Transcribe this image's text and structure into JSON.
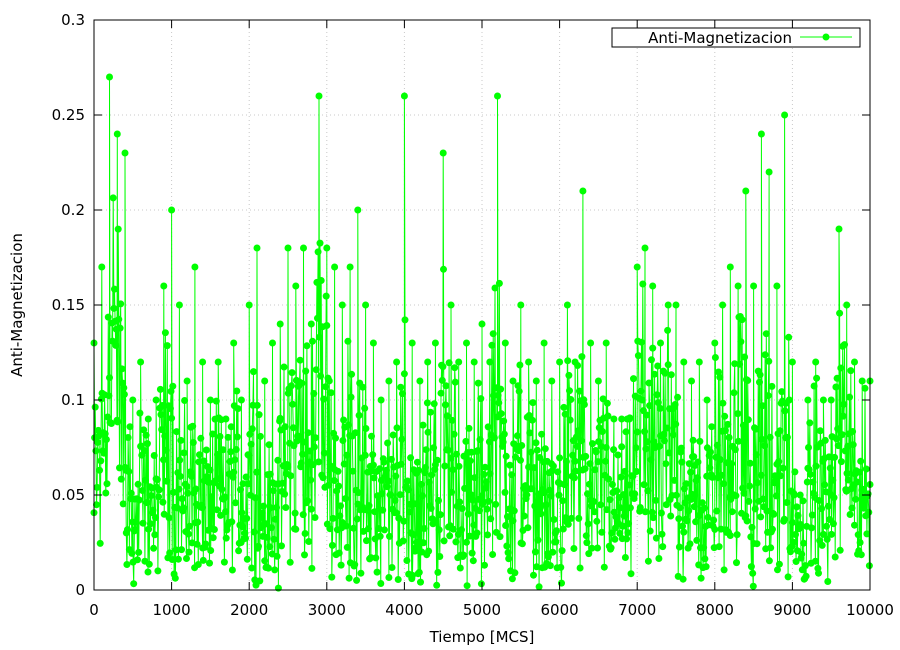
{
  "chart_data": {
    "type": "line",
    "title": "",
    "xlabel": "Tiempo [MCS]",
    "ylabel": "Anti-Magnetizacion",
    "xlim": [
      0,
      10000
    ],
    "ylim": [
      0,
      0.3
    ],
    "x_ticks": [
      0,
      1000,
      2000,
      3000,
      4000,
      5000,
      6000,
      7000,
      8000,
      9000,
      10000
    ],
    "x_tick_labels": [
      "0",
      "1000",
      "2000",
      "3000",
      "4000",
      "5000",
      "6000",
      "7000",
      "8000",
      "9000",
      "10000"
    ],
    "y_ticks": [
      0,
      0.05,
      0.1,
      0.15,
      0.2,
      0.25,
      0.3
    ],
    "y_tick_labels": [
      "0",
      "0.05",
      "0.1",
      "0.15",
      "0.2",
      "0.25",
      "0.3"
    ],
    "grid": true,
    "legend_position": "top-right",
    "series": [
      {
        "name": "Anti-Magnetizacion",
        "color": "#00ff00",
        "marker": "circle",
        "envelope_x": [
          0,
          100,
          200,
          300,
          400,
          500,
          600,
          700,
          800,
          900,
          1000,
          1100,
          1200,
          1300,
          1400,
          1500,
          1600,
          1700,
          1800,
          1900,
          2000,
          2100,
          2200,
          2300,
          2400,
          2500,
          2600,
          2700,
          2800,
          2900,
          3000,
          3100,
          3200,
          3300,
          3400,
          3500,
          3600,
          3700,
          3800,
          3900,
          4000,
          4100,
          4200,
          4300,
          4400,
          4500,
          4600,
          4700,
          4800,
          4900,
          5000,
          5100,
          5200,
          5300,
          5400,
          5500,
          5600,
          5700,
          5800,
          5900,
          6000,
          6100,
          6200,
          6300,
          6400,
          6500,
          6600,
          6700,
          6800,
          6900,
          7000,
          7100,
          7200,
          7300,
          7400,
          7500,
          7600,
          7700,
          7800,
          7900,
          8000,
          8100,
          8200,
          8300,
          8400,
          8500,
          8600,
          8700,
          8800,
          8900,
          9000,
          9100,
          9200,
          9300,
          9400,
          9500,
          9600,
          9700,
          9800,
          9900,
          10000
        ],
        "envelope_y": [
          0.13,
          0.17,
          0.27,
          0.24,
          0.23,
          0.1,
          0.12,
          0.09,
          0.1,
          0.16,
          0.2,
          0.15,
          0.11,
          0.17,
          0.12,
          0.1,
          0.12,
          0.09,
          0.13,
          0.1,
          0.15,
          0.18,
          0.11,
          0.13,
          0.14,
          0.18,
          0.16,
          0.18,
          0.14,
          0.26,
          0.18,
          0.17,
          0.15,
          0.17,
          0.2,
          0.15,
          0.13,
          0.1,
          0.11,
          0.12,
          0.26,
          0.13,
          0.11,
          0.12,
          0.13,
          0.23,
          0.15,
          0.12,
          0.13,
          0.12,
          0.14,
          0.12,
          0.26,
          0.13,
          0.11,
          0.15,
          0.12,
          0.11,
          0.13,
          0.11,
          0.12,
          0.15,
          0.12,
          0.21,
          0.13,
          0.11,
          0.13,
          0.09,
          0.09,
          0.09,
          0.17,
          0.18,
          0.16,
          0.13,
          0.15,
          0.15,
          0.12,
          0.11,
          0.12,
          0.1,
          0.13,
          0.15,
          0.17,
          0.16,
          0.21,
          0.16,
          0.24,
          0.22,
          0.16,
          0.25,
          0.12,
          0.05,
          0.1,
          0.12,
          0.1,
          0.1,
          0.19,
          0.15,
          0.12,
          0.11,
          0.11
        ]
      }
    ]
  }
}
